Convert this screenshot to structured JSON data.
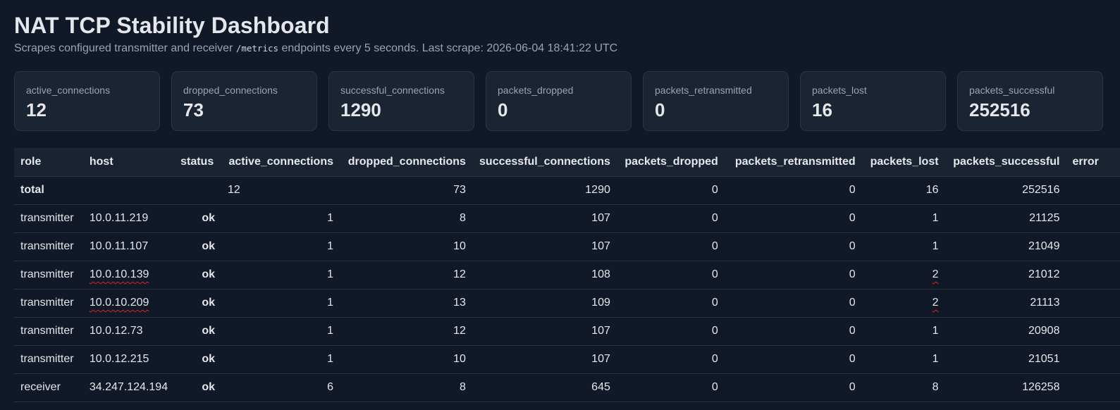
{
  "header": {
    "title": "NAT TCP Stability Dashboard",
    "subtitle_before": "Scrapes configured transmitter and receiver",
    "subtitle_code": "/metrics",
    "subtitle_after": "endpoints every 5 seconds. Last scrape: 2026-06-04 18:41:22 UTC"
  },
  "cards": [
    {
      "label": "active_connections",
      "value": "12"
    },
    {
      "label": "dropped_connections",
      "value": "73"
    },
    {
      "label": "successful_connections",
      "value": "1290"
    },
    {
      "label": "packets_dropped",
      "value": "0"
    },
    {
      "label": "packets_retransmitted",
      "value": "0"
    },
    {
      "label": "packets_lost",
      "value": "16"
    },
    {
      "label": "packets_successful",
      "value": "252516"
    }
  ],
  "table": {
    "columns": [
      "role",
      "host",
      "status",
      "active_connections",
      "dropped_connections",
      "successful_connections",
      "packets_dropped",
      "packets_retransmitted",
      "packets_lost",
      "packets_successful",
      "error"
    ],
    "total": {
      "role": "total",
      "host": "",
      "status": "",
      "active_connections": "12",
      "dropped_connections": "73",
      "successful_connections": "1290",
      "packets_dropped": "0",
      "packets_retransmitted": "0",
      "packets_lost": "16",
      "packets_successful": "252516",
      "error": ""
    },
    "rows": [
      {
        "role": "transmitter",
        "host": "10.0.11.219",
        "status": "ok",
        "active_connections": "1",
        "dropped_connections": "8",
        "successful_connections": "107",
        "packets_dropped": "0",
        "packets_retransmitted": "0",
        "packets_lost": "1",
        "packets_successful": "21125",
        "error": ""
      },
      {
        "role": "transmitter",
        "host": "10.0.11.107",
        "status": "ok",
        "active_connections": "1",
        "dropped_connections": "10",
        "successful_connections": "107",
        "packets_dropped": "0",
        "packets_retransmitted": "0",
        "packets_lost": "1",
        "packets_successful": "21049",
        "error": ""
      },
      {
        "role": "transmitter",
        "host": "10.0.10.139",
        "status": "ok",
        "active_connections": "1",
        "dropped_connections": "12",
        "successful_connections": "108",
        "packets_dropped": "0",
        "packets_retransmitted": "0",
        "packets_lost": "2",
        "packets_successful": "21012",
        "error": ""
      },
      {
        "role": "transmitter",
        "host": "10.0.10.209",
        "status": "ok",
        "active_connections": "1",
        "dropped_connections": "13",
        "successful_connections": "109",
        "packets_dropped": "0",
        "packets_retransmitted": "0",
        "packets_lost": "2",
        "packets_successful": "21113",
        "error": ""
      },
      {
        "role": "transmitter",
        "host": "10.0.12.73",
        "status": "ok",
        "active_connections": "1",
        "dropped_connections": "12",
        "successful_connections": "107",
        "packets_dropped": "0",
        "packets_retransmitted": "0",
        "packets_lost": "1",
        "packets_successful": "20908",
        "error": ""
      },
      {
        "role": "transmitter",
        "host": "10.0.12.215",
        "status": "ok",
        "active_connections": "1",
        "dropped_connections": "10",
        "successful_connections": "107",
        "packets_dropped": "0",
        "packets_retransmitted": "0",
        "packets_lost": "1",
        "packets_successful": "21051",
        "error": ""
      },
      {
        "role": "receiver",
        "host": "34.247.124.194",
        "status": "ok",
        "active_connections": "6",
        "dropped_connections": "8",
        "successful_connections": "645",
        "packets_dropped": "0",
        "packets_retransmitted": "0",
        "packets_lost": "8",
        "packets_successful": "126258",
        "error": ""
      }
    ]
  },
  "colors": {
    "background": "#111827",
    "card": "#1b2433",
    "status_ok": "#4ade80",
    "spellcheck_underline": "#dc2626"
  }
}
